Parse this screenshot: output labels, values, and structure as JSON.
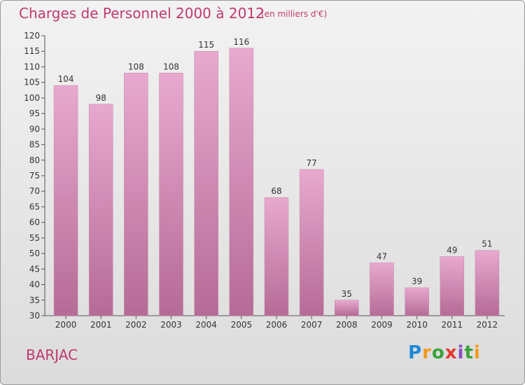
{
  "header": {
    "title": "Charges de Personnel 2000 à 2012",
    "subtitle": "(en milliers d'€)"
  },
  "footer": {
    "city": "BARJAC",
    "logo": "Proxiti"
  },
  "colors": {
    "title": "#c0396f",
    "bar_top": "#e8a9cf",
    "bar_bottom": "#b56b96"
  },
  "chart_data": {
    "type": "bar",
    "title": "Charges de Personnel 2000 à 2012",
    "subtitle": "(en milliers d'€)",
    "categories": [
      "2000",
      "2001",
      "2002",
      "2003",
      "2004",
      "2005",
      "2006",
      "2007",
      "2008",
      "2009",
      "2010",
      "2011",
      "2012"
    ],
    "values": [
      104,
      98,
      108,
      108,
      115,
      116,
      68,
      77,
      35,
      47,
      39,
      49,
      51
    ],
    "ylim": [
      30,
      120
    ],
    "yticks": [
      30,
      35,
      40,
      45,
      50,
      55,
      60,
      65,
      70,
      75,
      80,
      85,
      90,
      95,
      100,
      105,
      110,
      115,
      120
    ],
    "grid": false,
    "legend": "none"
  }
}
